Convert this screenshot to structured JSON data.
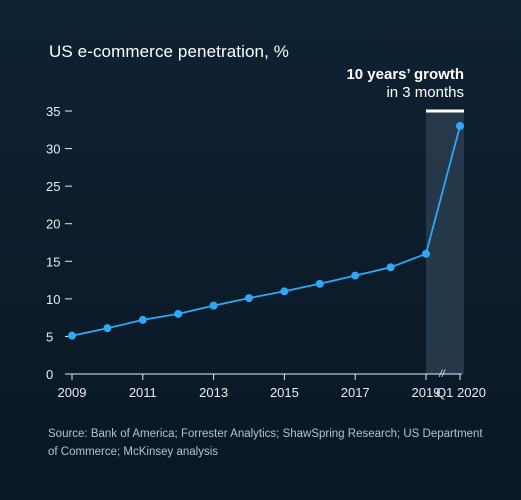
{
  "title": "US e-commerce penetration, %",
  "callout": {
    "line1": "10 years’ growth",
    "line2": "in 3 months"
  },
  "axis_break_mark": "//",
  "source": "Source: Bank of America; Forrester Analytics; ShawSpring Research; US Department of Commerce; McKinsey analysis",
  "colors": {
    "background": "#0f2233",
    "line": "#2fa9f5",
    "highlight_band": "#2a3d4f",
    "axis": "#e7edf2"
  },
  "chart_data": {
    "type": "line",
    "title": "US e-commerce penetration, %",
    "xlabel": "",
    "ylabel": "",
    "x_tick_labels": [
      "2009",
      "2011",
      "2013",
      "2015",
      "2017",
      "2019",
      "Q1 2020"
    ],
    "y_ticks": [
      0,
      5,
      10,
      15,
      20,
      25,
      30,
      35
    ],
    "ylim": [
      0,
      35
    ],
    "grid": false,
    "highlight": {
      "from": "2019",
      "to": "Q1 2020",
      "label": "10 years’ growth in 3 months"
    },
    "series": [
      {
        "points": [
          {
            "x": "2009",
            "y": 5.1
          },
          {
            "x": "2010",
            "y": 6.1
          },
          {
            "x": "2011",
            "y": 7.2
          },
          {
            "x": "2012",
            "y": 8.0
          },
          {
            "x": "2013",
            "y": 9.1
          },
          {
            "x": "2014",
            "y": 10.1
          },
          {
            "x": "2015",
            "y": 11.0
          },
          {
            "x": "2016",
            "y": 12.0
          },
          {
            "x": "2017",
            "y": 13.1
          },
          {
            "x": "2018",
            "y": 14.2
          },
          {
            "x": "2019",
            "y": 16.0
          },
          {
            "x": "Q1 2020",
            "y": 33.0
          }
        ]
      }
    ]
  }
}
